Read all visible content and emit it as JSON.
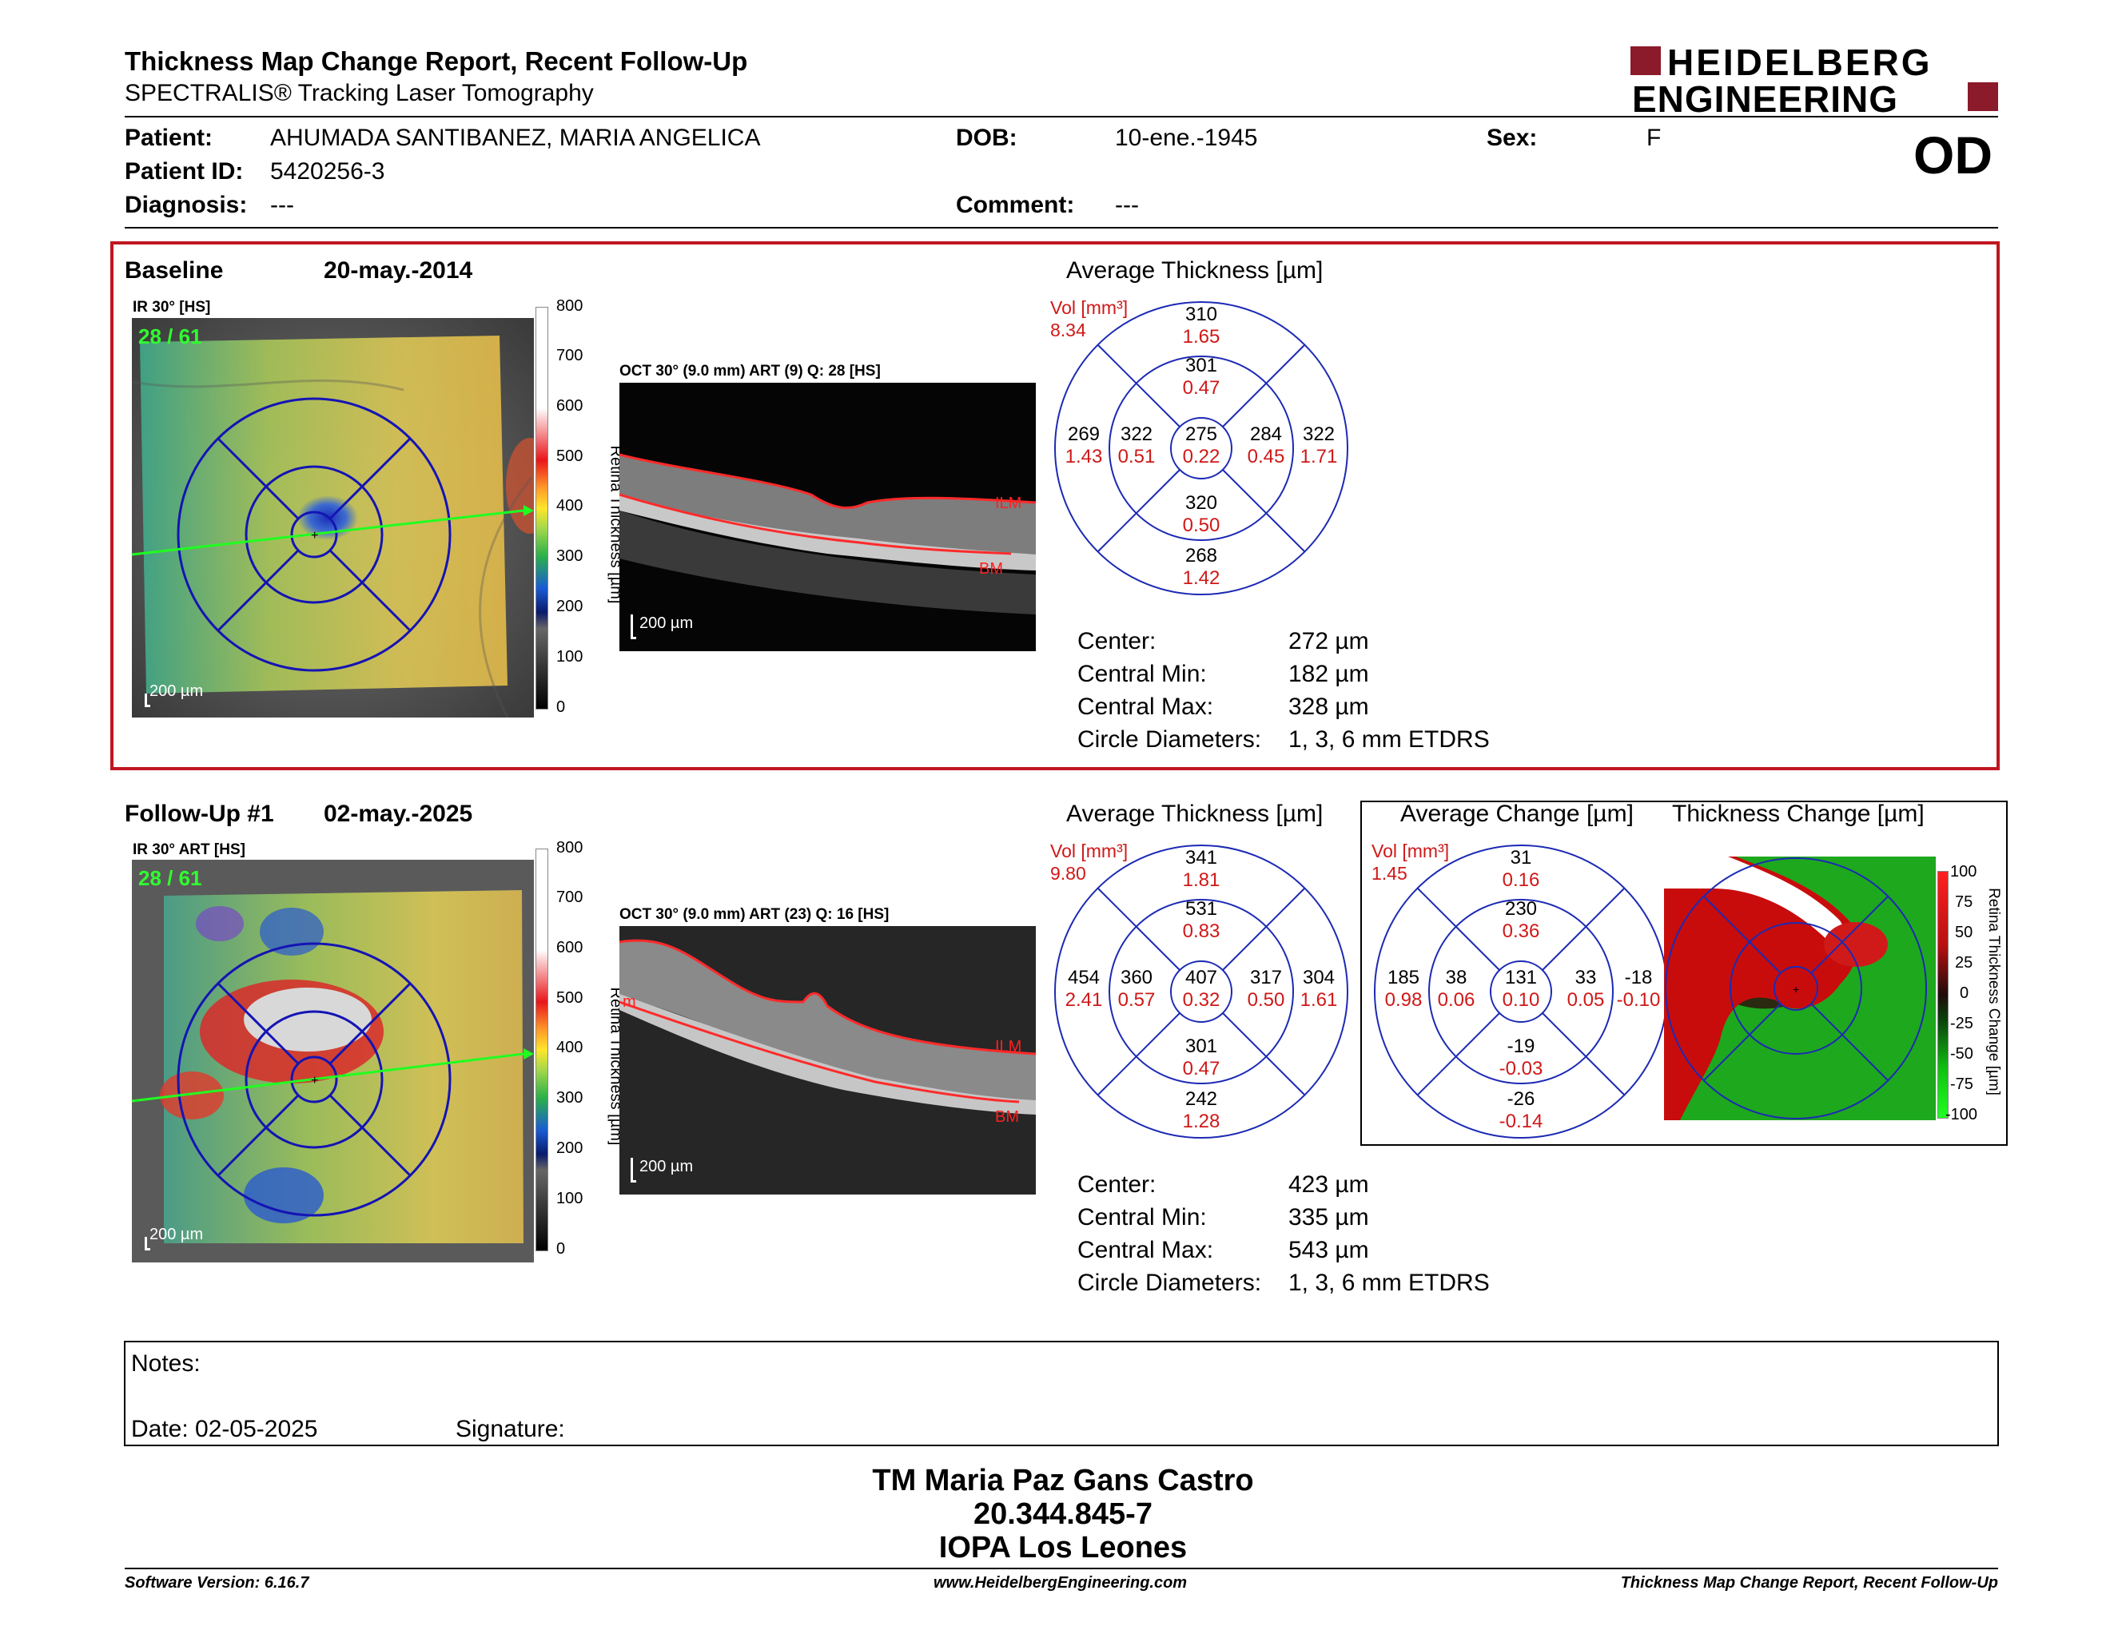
{
  "header": {
    "title": "Thickness Map Change Report, Recent Follow-Up",
    "subtitle": "SPECTRALIS® Tracking Laser Tomography",
    "logo_line1": "HEIDELBERG",
    "logo_line2": "ENGINEERING",
    "eye": "OD"
  },
  "patient": {
    "patient_label": "Patient:",
    "patient_value": "AHUMADA SANTIBANEZ, MARIA ANGELICA",
    "dob_label": "DOB:",
    "dob_value": "10-ene.-1945",
    "sex_label": "Sex:",
    "sex_value": "F",
    "id_label": "Patient ID:",
    "id_value": "5420256-3",
    "diag_label": "Diagnosis:",
    "diag_value": "---",
    "comment_label": "Comment:",
    "comment_value": "---"
  },
  "baseline": {
    "label": "Baseline",
    "date": "20-may.-2014",
    "ir_title": "IR 30° [HS]",
    "ir_frames": "28 / 61",
    "scale": "200 µm",
    "colorbar_ticks": [
      "800",
      "700",
      "600",
      "500",
      "400",
      "300",
      "200",
      "100",
      "0"
    ],
    "colorbar_title": "Retina Thickness [µm]",
    "oct_title": "OCT 30° (9.0 mm) ART (9) Q: 28 [HS]",
    "ilm": "ILM",
    "bm": "BM",
    "avg_title": "Average Thickness [µm]",
    "vol_label": "Vol [mm³]",
    "vol_value": "8.34",
    "etdrs": {
      "c": [
        "275",
        "0.22"
      ],
      "in": [
        "301",
        "0.47"
      ],
      "ii": [
        "320",
        "0.50"
      ],
      "it": [
        "322",
        "0.51"
      ],
      "in_n": [
        "284",
        "0.45"
      ],
      "on": [
        "310",
        "1.65"
      ],
      "oi": [
        "268",
        "1.42"
      ],
      "ot": [
        "269",
        "1.43"
      ],
      "on_n": [
        "322",
        "1.71"
      ]
    },
    "stats": [
      {
        "label": "Center:",
        "value": "272 µm"
      },
      {
        "label": "Central Min:",
        "value": "182 µm"
      },
      {
        "label": "Central Max:",
        "value": "328 µm"
      },
      {
        "label": "Circle Diameters:",
        "value": "1, 3, 6 mm ETDRS"
      }
    ]
  },
  "followup": {
    "label": "Follow-Up #1",
    "date": "02-may.-2025",
    "ir_title": "IR 30° ART [HS]",
    "ir_frames": "28 / 61",
    "scale": "200 µm",
    "colorbar_ticks": [
      "800",
      "700",
      "600",
      "500",
      "400",
      "300",
      "200",
      "100",
      "0"
    ],
    "colorbar_title": "Retina Thickness [µm]",
    "oct_title": "OCT 30° (9.0 mm) ART (23) Q: 16 [HS]",
    "ilm": "ILM",
    "bm": "BM",
    "ilm_left": "m",
    "avg_title": "Average Thickness [µm]",
    "vol_label": "Vol [mm³]",
    "vol_value": "9.80",
    "etdrs": {
      "c": [
        "407",
        "0.32"
      ],
      "in": [
        "531",
        "0.83"
      ],
      "ii": [
        "301",
        "0.47"
      ],
      "it": [
        "360",
        "0.57"
      ],
      "in_n": [
        "317",
        "0.50"
      ],
      "on": [
        "341",
        "1.81"
      ],
      "oi": [
        "242",
        "1.28"
      ],
      "ot": [
        "454",
        "2.41"
      ],
      "on_n": [
        "304",
        "1.61"
      ]
    },
    "stats": [
      {
        "label": "Center:",
        "value": "423 µm"
      },
      {
        "label": "Central Min:",
        "value": "335 µm"
      },
      {
        "label": "Central Max:",
        "value": "543 µm"
      },
      {
        "label": "Circle Diameters:",
        "value": "1, 3, 6 mm ETDRS"
      }
    ],
    "change_title": "Average Change [µm]",
    "change_vol_label": "Vol [mm³]",
    "change_vol_value": "1.45",
    "change_etdrs": {
      "c": [
        "131",
        "0.10"
      ],
      "in": [
        "230",
        "0.36"
      ],
      "ii": [
        "-19",
        "-0.03"
      ],
      "it": [
        "38",
        "0.06"
      ],
      "in_n": [
        "33",
        "0.05"
      ],
      "on": [
        "31",
        "0.16"
      ],
      "oi": [
        "-26",
        "-0.14"
      ],
      "ot": [
        "185",
        "0.98"
      ],
      "on_n": [
        "-18",
        "-0.10"
      ]
    },
    "tchange_title": "Thickness Change [µm]",
    "tchange_ticks": [
      "100",
      "75",
      "50",
      "25",
      "0",
      "-25",
      "-50",
      "-75",
      "-100"
    ],
    "tchange_bar_title": "Retina Thickness Change [µm]"
  },
  "notes": {
    "label": "Notes:",
    "date_label": "Date: 02-05-2025",
    "signature_label": "Signature:"
  },
  "signature_block": {
    "name": "TM Maria Paz Gans Castro",
    "id": "20.344.845-7",
    "org": "IOPA Los Leones"
  },
  "footer": {
    "software": "Software Version: 6.16.7",
    "url": "www.HeidelbergEngineering.com",
    "report": "Thickness Map Change Report, Recent Follow-Up"
  }
}
